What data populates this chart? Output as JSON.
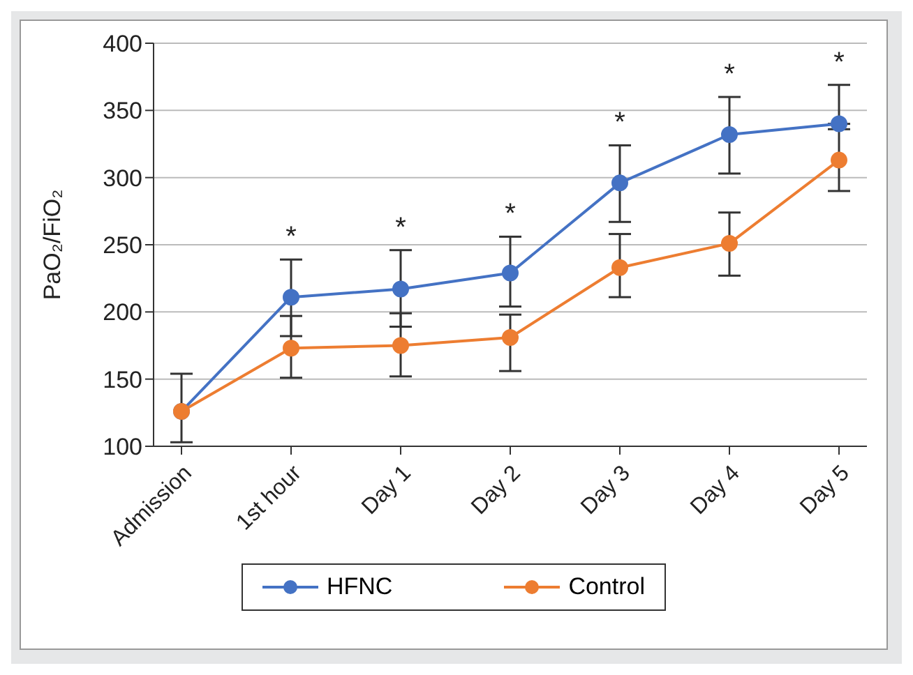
{
  "chart_data": {
    "type": "line",
    "ylabel": "PaO₂/FiO₂",
    "categories": [
      "Admission",
      "1st hour",
      "Day 1",
      "Day 2",
      "Day 3",
      "Day 4",
      "Day 5"
    ],
    "series": [
      {
        "name": "HFNC",
        "color": "#4472c4",
        "values": [
          126,
          211,
          217,
          229,
          296,
          332,
          340
        ],
        "errors": [
          [
            103,
            154
          ],
          [
            182,
            239
          ],
          [
            189,
            246
          ],
          [
            204,
            256
          ],
          [
            267,
            324
          ],
          [
            303,
            360
          ],
          [
            340,
            369
          ]
        ]
      },
      {
        "name": "Control",
        "color": "#ed7d31",
        "values": [
          126,
          173,
          175,
          181,
          233,
          251,
          313
        ],
        "errors": [
          null,
          [
            151,
            197
          ],
          [
            152,
            199
          ],
          [
            156,
            198
          ],
          [
            211,
            258
          ],
          [
            227,
            274
          ],
          [
            290,
            336
          ]
        ]
      }
    ],
    "ylim": [
      100,
      400
    ],
    "yticks": [
      100,
      150,
      200,
      250,
      300,
      350,
      400
    ],
    "grid": "y",
    "legend": "bottom",
    "marker": "circle",
    "annotations": [
      {
        "text": "*",
        "x": "1st hour",
        "y": 239
      },
      {
        "text": "*",
        "x": "Day 1",
        "y": 246
      },
      {
        "text": "*",
        "x": "Day 2",
        "y": 256
      },
      {
        "text": "*",
        "x": "Day 3",
        "y": 324
      },
      {
        "text": "*",
        "x": "Day 4",
        "y": 360
      },
      {
        "text": "*",
        "x": "Day 5",
        "y": 369
      }
    ]
  }
}
